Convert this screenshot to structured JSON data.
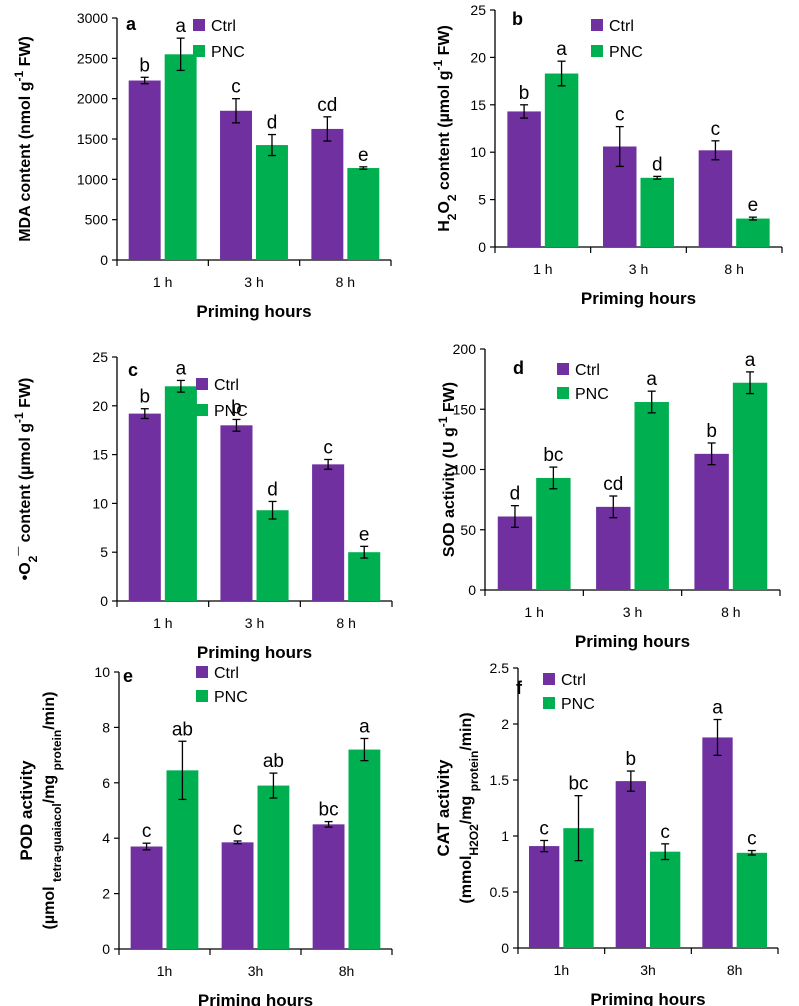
{
  "colors": {
    "ctrl": "#7030A0",
    "pnc": "#00B050",
    "axis": "#000000"
  },
  "legend_labels": [
    "Ctrl",
    "PNC"
  ],
  "chart_data": [
    {
      "panel": "a",
      "type": "bar",
      "ylabel_parts": [
        "MDA content (nmol g",
        "-1",
        " FW)"
      ],
      "ylabel": "MDA content (nmol g-1 FW)",
      "xlabel": "Priming hours",
      "categories": [
        "1 h",
        "3 h",
        "8 h"
      ],
      "ylim": [
        0,
        3000
      ],
      "ytick_step": 500,
      "yticks": [
        "0",
        "500",
        "1000",
        "1500",
        "2000",
        "2500",
        "3000"
      ],
      "series": [
        {
          "name": "Ctrl",
          "values": [
            2225,
            1850,
            1625
          ],
          "errors": [
            40,
            150,
            150
          ],
          "letters": [
            "b",
            "c",
            "cd"
          ]
        },
        {
          "name": "PNC",
          "values": [
            2550,
            1425,
            1140
          ],
          "errors": [
            200,
            130,
            15
          ],
          "letters": [
            "a",
            "d",
            "e"
          ]
        }
      ]
    },
    {
      "panel": "b",
      "type": "bar",
      "ylabel_parts": [
        "H",
        "2",
        "O",
        "2",
        " content (µmol g",
        "-1",
        " FW)"
      ],
      "ylabel": "H2O2 content (µmol g-1 FW)",
      "xlabel": "Priming hours",
      "categories": [
        "1 h",
        "3 h",
        "8 h"
      ],
      "ylim": [
        0,
        25
      ],
      "ytick_step": 5,
      "yticks": [
        "0",
        "5",
        "10",
        "15",
        "20",
        "25"
      ],
      "series": [
        {
          "name": "Ctrl",
          "values": [
            14.3,
            10.6,
            10.2
          ],
          "errors": [
            0.7,
            2.1,
            1.0
          ],
          "letters": [
            "b",
            "c",
            "c"
          ]
        },
        {
          "name": "PNC",
          "values": [
            18.3,
            7.3,
            3.0
          ],
          "errors": [
            1.3,
            0.15,
            0.15
          ],
          "letters": [
            "a",
            "d",
            "e"
          ]
        }
      ]
    },
    {
      "panel": "c",
      "type": "bar",
      "ylabel_parts": [
        "•O",
        "2",
        "¯ content (µmol g",
        "-1",
        " FW)"
      ],
      "ylabel": "•O2¯ content (µmol g-1 FW)",
      "xlabel": "Priming hours",
      "categories": [
        "1 h",
        "3 h",
        "8 h"
      ],
      "ylim": [
        0,
        25
      ],
      "ytick_step": 5,
      "yticks": [
        "0",
        "5",
        "10",
        "15",
        "20",
        "25"
      ],
      "series": [
        {
          "name": "Ctrl",
          "values": [
            19.2,
            18.0,
            14.0
          ],
          "errors": [
            0.5,
            0.6,
            0.5
          ],
          "letters": [
            "b",
            "b",
            "c"
          ]
        },
        {
          "name": "PNC",
          "values": [
            22.0,
            9.3,
            5.0
          ],
          "errors": [
            0.6,
            0.9,
            0.6
          ],
          "letters": [
            "a",
            "d",
            "e"
          ]
        }
      ]
    },
    {
      "panel": "d",
      "type": "bar",
      "ylabel_parts": [
        "SOD activity (U g",
        "-1",
        " FW)"
      ],
      "ylabel": "SOD activity (U g-1 FW)",
      "xlabel": "Priming hours",
      "categories": [
        "1 h",
        "3 h",
        "8 h"
      ],
      "ylim": [
        0,
        200
      ],
      "ytick_step": 50,
      "yticks": [
        "0",
        "50",
        "100",
        "150",
        "200"
      ],
      "series": [
        {
          "name": "Ctrl",
          "values": [
            61,
            69,
            113
          ],
          "errors": [
            9,
            9,
            9
          ],
          "letters": [
            "d",
            "cd",
            "b"
          ]
        },
        {
          "name": "PNC",
          "values": [
            93,
            156,
            172
          ],
          "errors": [
            9,
            9,
            9
          ],
          "letters": [
            "bc",
            "a",
            "a"
          ]
        }
      ]
    },
    {
      "panel": "e",
      "type": "bar",
      "ylabel_line1": "POD activity",
      "ylabel_parts": [
        "(µmol ",
        "tetra-guaiacol",
        "/mg ",
        "protein",
        "/min)"
      ],
      "ylabel": "POD activity (µmol tetra-guaiacol/mg protein/min)",
      "xlabel": "Priming hours",
      "categories": [
        "1h",
        "3h",
        "8h"
      ],
      "ylim": [
        0,
        10
      ],
      "ytick_step": 2,
      "yticks": [
        "0",
        "2",
        "4",
        "6",
        "8",
        "10"
      ],
      "series": [
        {
          "name": "Ctrl",
          "values": [
            3.7,
            3.85,
            4.5
          ],
          "errors": [
            0.12,
            0.05,
            0.1
          ],
          "letters": [
            "c",
            "c",
            "bc"
          ]
        },
        {
          "name": "PNC",
          "values": [
            6.45,
            5.9,
            7.2
          ],
          "errors": [
            1.05,
            0.45,
            0.4
          ],
          "letters": [
            "ab",
            "ab",
            "a"
          ]
        }
      ]
    },
    {
      "panel": "f",
      "type": "bar",
      "ylabel_line1": "CAT activity",
      "ylabel_parts": [
        "(mmol",
        "H2O2",
        "/mg ",
        "protein",
        "/min)"
      ],
      "ylabel": "CAT activity (mmolH2O2/mg protein/min)",
      "xlabel": "Priming hours",
      "categories": [
        "1h",
        "3h",
        "8h"
      ],
      "ylim": [
        0,
        2.5
      ],
      "ytick_step": 0.5,
      "yticks": [
        "0",
        "0.5",
        "1",
        "1.5",
        "2",
        "2.5"
      ],
      "series": [
        {
          "name": "Ctrl",
          "values": [
            0.91,
            1.49,
            1.88
          ],
          "errors": [
            0.05,
            0.09,
            0.16
          ],
          "letters": [
            "c",
            "b",
            "a"
          ]
        },
        {
          "name": "PNC",
          "values": [
            1.07,
            0.86,
            0.85
          ],
          "errors": [
            0.29,
            0.07,
            0.02
          ],
          "letters": [
            "bc",
            "c",
            "c"
          ]
        }
      ]
    }
  ]
}
